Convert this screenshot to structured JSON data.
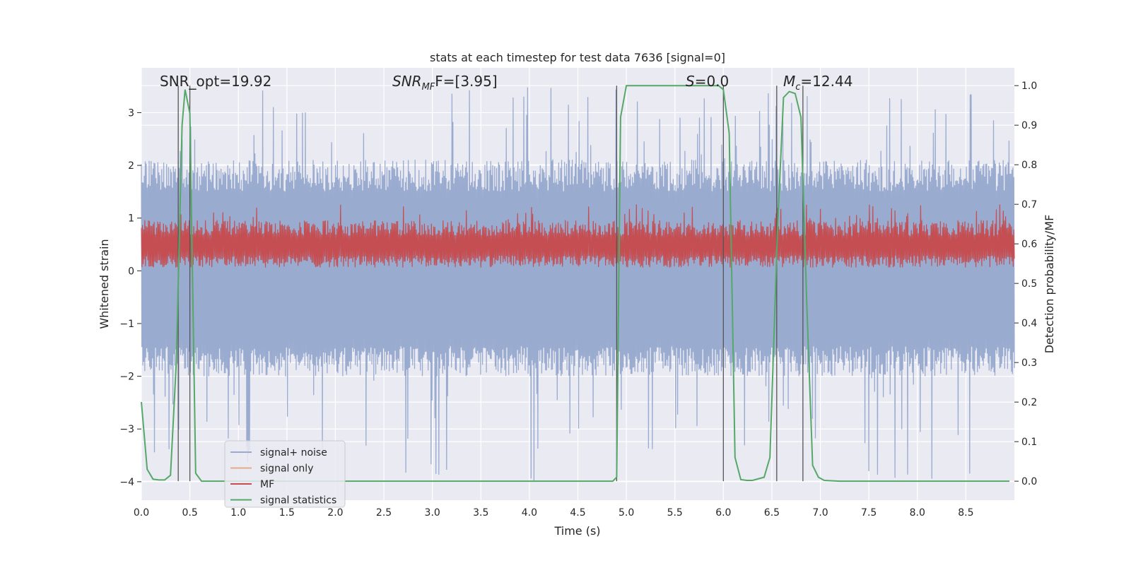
{
  "chart_data": {
    "type": "line",
    "title": "stats at each timestep for test data 7636 [signal=0]",
    "xlabel": "Time (s)",
    "ylabel_left": "Whitened strain",
    "ylabel_right": "Detection probability/MF",
    "xlim": [
      0.0,
      9.0
    ],
    "ylim_left": [
      -4.35,
      3.85
    ],
    "ylim_right": [
      -0.048,
      1.045
    ],
    "x_ticks": [
      "0.0",
      "0.5",
      "1.0",
      "1.5",
      "2.0",
      "2.5",
      "3.0",
      "3.5",
      "4.0",
      "4.5",
      "5.0",
      "5.5",
      "6.0",
      "6.5",
      "7.0",
      "7.5",
      "8.0",
      "8.5"
    ],
    "y_ticks_left": [
      "−4",
      "−3",
      "−2",
      "−1",
      "0",
      "1",
      "2",
      "3"
    ],
    "y_ticks_right": [
      "0.0",
      "0.1",
      "0.2",
      "0.3",
      "0.4",
      "0.5",
      "0.6",
      "0.7",
      "0.8",
      "0.9",
      "1.0"
    ],
    "annotations": {
      "snr_opt": "SNR_opt=19.92",
      "snr_mf_base": "SNR",
      "snr_mf_sub": "MF",
      "snr_mf_value": "F=[3.95]",
      "s_label": "S",
      "s_value": "=0.0",
      "mc_base": "M",
      "mc_sub": "c",
      "mc_value": "=12.44"
    },
    "legend": {
      "placement": "lower-left",
      "entries": [
        "signal+ noise",
        "signal only",
        "MF",
        "signal statistics"
      ]
    },
    "colors": {
      "background": "#eaeaf2",
      "grid": "#ffffff",
      "noise": "#9aabd0",
      "signal_only": "#e8a98a",
      "mf": "#c44e52",
      "statistics": "#55a868",
      "vline": "#555555"
    },
    "noise_envelope": {
      "description_units": "whitened strain",
      "typical_upper": 2.0,
      "typical_lower": -1.9,
      "peaks_upper_max": 3.5,
      "peaks_lower_min": -4.0
    },
    "mf_band": {
      "units": "detection probability/MF",
      "lower": 0.54,
      "upper": 0.66
    },
    "vlines_x": [
      0.38,
      0.5,
      4.9,
      6.0,
      6.55,
      6.82
    ],
    "series": [
      {
        "name": "signal statistics",
        "axis": "right",
        "x": [
          0.0,
          0.06,
          0.12,
          0.18,
          0.24,
          0.3,
          0.36,
          0.42,
          0.45,
          0.5,
          0.56,
          0.62,
          0.7,
          1.0,
          2.0,
          3.0,
          4.0,
          4.8,
          4.86,
          4.9,
          4.94,
          5.0,
          5.5,
          5.95,
          6.0,
          6.06,
          6.12,
          6.18,
          6.24,
          6.3,
          6.42,
          6.48,
          6.56,
          6.62,
          6.68,
          6.74,
          6.8,
          6.86,
          6.92,
          6.98,
          7.04,
          7.2,
          8.0,
          8.95
        ],
        "y": [
          0.2,
          0.03,
          0.005,
          0.003,
          0.003,
          0.015,
          0.3,
          0.9,
          0.99,
          0.93,
          0.02,
          0.0,
          0.0,
          0.0,
          0.0,
          0.0,
          0.0,
          0.0,
          0.0,
          0.01,
          0.92,
          1.0,
          1.0,
          1.0,
          0.99,
          0.88,
          0.06,
          0.004,
          0.002,
          0.002,
          0.01,
          0.06,
          0.65,
          0.97,
          0.985,
          0.98,
          0.92,
          0.45,
          0.04,
          0.01,
          0.002,
          0.0,
          0.0,
          0.0
        ]
      }
    ]
  }
}
